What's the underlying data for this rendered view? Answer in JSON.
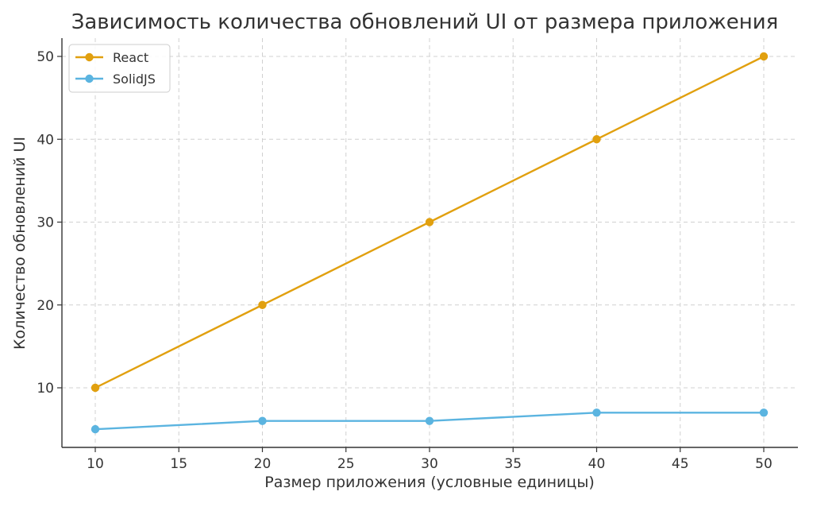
{
  "chart_data": {
    "type": "line",
    "title": "Зависимость количества обновлений UI от размера приложения",
    "xlabel": "Размер приложения (условные единицы)",
    "ylabel": "Количество обновлений UI",
    "x": [
      10,
      20,
      30,
      40,
      50
    ],
    "xlim": [
      8,
      52
    ],
    "ylim": [
      3.5,
      52
    ],
    "xticks": [
      10,
      15,
      20,
      25,
      30,
      35,
      40,
      45,
      50
    ],
    "yticks": [
      10,
      20,
      30,
      40,
      50
    ],
    "grid": true,
    "legend_position": "top-left",
    "series": [
      {
        "name": "React",
        "values": [
          10,
          20,
          30,
          40,
          50
        ],
        "color": "#E1A00F",
        "marker": "circle"
      },
      {
        "name": "SolidJS",
        "values": [
          5,
          6,
          6,
          7,
          7
        ],
        "color": "#5BB4E0",
        "marker": "circle"
      }
    ]
  }
}
